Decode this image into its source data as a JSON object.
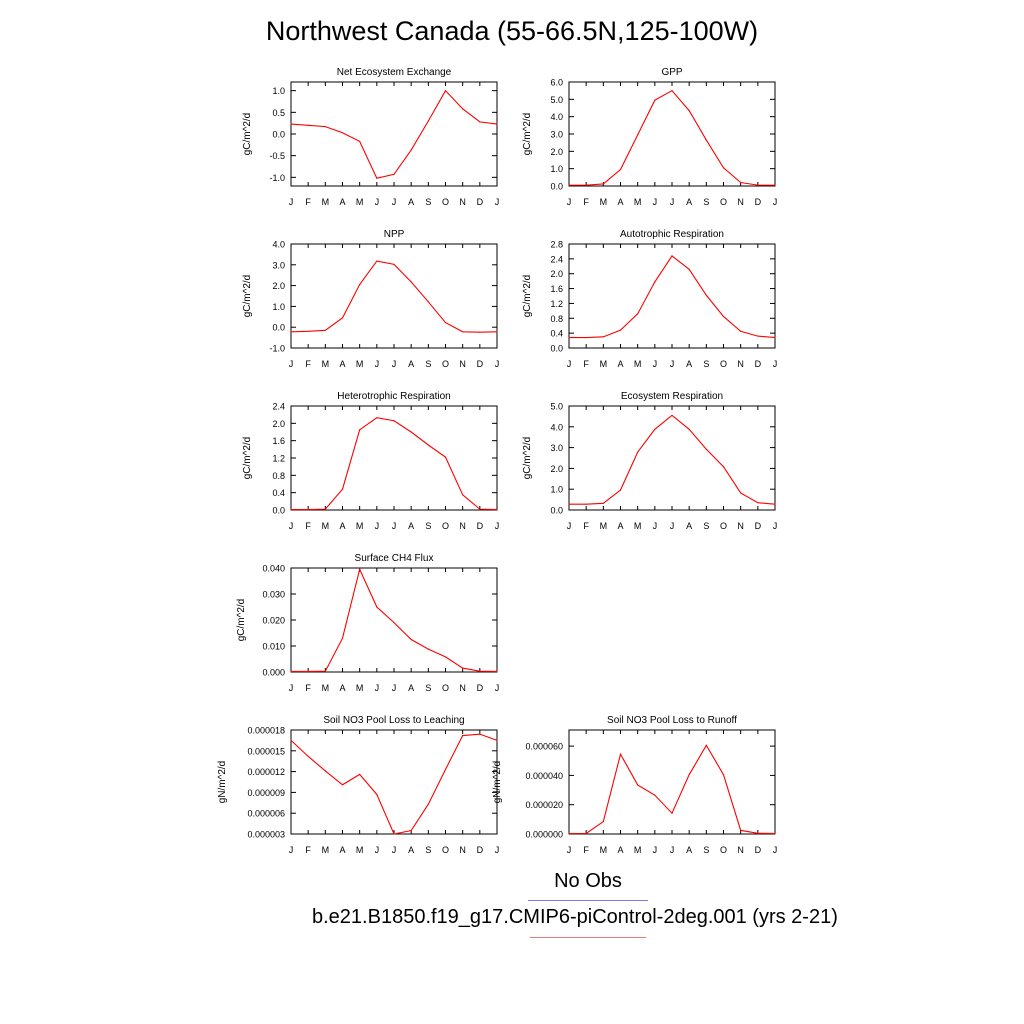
{
  "figure_title": "Northwest Canada (55-66.5N,125-100W)",
  "legend": {
    "obs_label": "No Obs",
    "case_label": "b.e21.B1850.f19_g17.CMIP6-piControl-2deg.001 (yrs 2-21)",
    "obs_color": "#7a7aee",
    "case_color": "#ee7a7a"
  },
  "chart_data": [
    {
      "type": "line",
      "title": "Net Ecosystem Exchange",
      "ylabel": "gC/m^2/d",
      "x": [
        "J",
        "F",
        "M",
        "A",
        "M",
        "J",
        "J",
        "A",
        "S",
        "O",
        "N",
        "D",
        "J"
      ],
      "series": [
        {
          "values": [
            0.23,
            0.2,
            0.17,
            0.03,
            -0.17,
            -1.02,
            -0.93,
            -0.37,
            0.3,
            1.0,
            0.58,
            0.28,
            0.23
          ],
          "color": "#ff0000"
        }
      ],
      "ylim": [
        -1.2,
        1.2
      ],
      "yticks": [
        -1.0,
        -0.5,
        0.0,
        0.5,
        1.0
      ],
      "ytick_labels": [
        "-1.0",
        "-0.5",
        "0.0",
        "0.5",
        "1.0"
      ]
    },
    {
      "type": "line",
      "title": "GPP",
      "ylabel": "gC/m^2/d",
      "x": [
        "J",
        "F",
        "M",
        "A",
        "M",
        "J",
        "J",
        "A",
        "S",
        "O",
        "N",
        "D",
        "J"
      ],
      "series": [
        {
          "values": [
            0.05,
            0.05,
            0.12,
            0.95,
            2.95,
            4.95,
            5.5,
            4.35,
            2.65,
            1.05,
            0.2,
            0.05,
            0.05
          ],
          "color": "#ff0000"
        }
      ],
      "ylim": [
        0.0,
        6.0
      ],
      "yticks": [
        0.0,
        1.0,
        2.0,
        3.0,
        4.0,
        5.0,
        6.0
      ],
      "ytick_labels": [
        "0.0",
        "1.0",
        "2.0",
        "3.0",
        "4.0",
        "5.0",
        "6.0"
      ]
    },
    {
      "type": "line",
      "title": "NPP",
      "ylabel": "gC/m^2/d",
      "x": [
        "J",
        "F",
        "M",
        "A",
        "M",
        "J",
        "J",
        "A",
        "S",
        "O",
        "N",
        "D",
        "J"
      ],
      "series": [
        {
          "values": [
            -0.22,
            -0.2,
            -0.15,
            0.45,
            2.05,
            3.18,
            3.02,
            2.18,
            1.22,
            0.22,
            -0.22,
            -0.24,
            -0.22
          ],
          "color": "#ff0000"
        }
      ],
      "ylim": [
        -1.0,
        4.0
      ],
      "yticks": [
        -1.0,
        0.0,
        1.0,
        2.0,
        3.0,
        4.0
      ],
      "ytick_labels": [
        "-1.0",
        "0.0",
        "1.0",
        "2.0",
        "3.0",
        "4.0"
      ]
    },
    {
      "type": "line",
      "title": "Autotrophic Respiration",
      "ylabel": "gC/m^2/d",
      "x": [
        "J",
        "F",
        "M",
        "A",
        "M",
        "J",
        "J",
        "A",
        "S",
        "O",
        "N",
        "D",
        "J"
      ],
      "series": [
        {
          "values": [
            0.28,
            0.28,
            0.3,
            0.48,
            0.92,
            1.78,
            2.48,
            2.12,
            1.42,
            0.85,
            0.45,
            0.32,
            0.28
          ],
          "color": "#ff0000"
        }
      ],
      "ylim": [
        0.0,
        2.8
      ],
      "yticks": [
        0.0,
        0.4,
        0.8,
        1.2,
        1.6,
        2.0,
        2.4,
        2.8
      ],
      "ytick_labels": [
        "0.0",
        "0.4",
        "0.8",
        "1.2",
        "1.6",
        "2.0",
        "2.4",
        "2.8"
      ]
    },
    {
      "type": "line",
      "title": "Heterotrophic Respiration",
      "ylabel": "gC/m^2/d",
      "x": [
        "J",
        "F",
        "M",
        "A",
        "M",
        "J",
        "J",
        "A",
        "S",
        "O",
        "N",
        "D",
        "J"
      ],
      "series": [
        {
          "values": [
            0.01,
            0.01,
            0.02,
            0.48,
            1.85,
            2.13,
            2.06,
            1.8,
            1.5,
            1.22,
            0.35,
            0.02,
            0.01
          ],
          "color": "#ff0000"
        }
      ],
      "ylim": [
        0.0,
        2.4
      ],
      "yticks": [
        0.0,
        0.4,
        0.8,
        1.2,
        1.6,
        2.0,
        2.4
      ],
      "ytick_labels": [
        "0.0",
        "0.4",
        "0.8",
        "1.2",
        "1.6",
        "2.0",
        "2.4"
      ]
    },
    {
      "type": "line",
      "title": "Ecosystem Respiration",
      "ylabel": "gC/m^2/d",
      "x": [
        "J",
        "F",
        "M",
        "A",
        "M",
        "J",
        "J",
        "A",
        "S",
        "O",
        "N",
        "D",
        "J"
      ],
      "series": [
        {
          "values": [
            0.28,
            0.28,
            0.32,
            0.96,
            2.78,
            3.88,
            4.55,
            3.88,
            2.92,
            2.08,
            0.82,
            0.35,
            0.28
          ],
          "color": "#ff0000"
        }
      ],
      "ylim": [
        0.0,
        5.0
      ],
      "yticks": [
        0.0,
        1.0,
        2.0,
        3.0,
        4.0,
        5.0
      ],
      "ytick_labels": [
        "0.0",
        "1.0",
        "2.0",
        "3.0",
        "4.0",
        "5.0"
      ]
    },
    {
      "type": "line",
      "title": "Surface CH4 Flux",
      "ylabel": "gC/m^2/d",
      "x": [
        "J",
        "F",
        "M",
        "A",
        "M",
        "J",
        "J",
        "A",
        "S",
        "O",
        "N",
        "D",
        "J"
      ],
      "series": [
        {
          "values": [
            0.0002,
            0.0002,
            0.0003,
            0.013,
            0.0395,
            0.025,
            0.019,
            0.0125,
            0.0088,
            0.0058,
            0.0015,
            0.0003,
            0.0002
          ],
          "color": "#ff0000"
        }
      ],
      "ylim": [
        0.0,
        0.04
      ],
      "yticks": [
        0.0,
        0.01,
        0.02,
        0.03,
        0.04
      ],
      "ytick_labels": [
        "0.000",
        "0.010",
        "0.020",
        "0.030",
        "0.040"
      ]
    },
    {
      "type": "line",
      "title": "Soil NO3 Pool Loss to Leaching",
      "ylabel": "gN/m^2/d",
      "x": [
        "J",
        "F",
        "M",
        "A",
        "M",
        "J",
        "J",
        "A",
        "S",
        "O",
        "N",
        "D",
        "J"
      ],
      "series": [
        {
          "values": [
            1.65e-05,
            1.42e-05,
            1.21e-05,
            1.01e-05,
            1.16e-05,
            8.7e-06,
            3e-06,
            3.5e-06,
            7.3e-06,
            1.23e-05,
            1.72e-05,
            1.74e-05,
            1.65e-05
          ],
          "color": "#ff0000"
        }
      ],
      "ylim": [
        3e-06,
        1.8e-05
      ],
      "yticks": [
        3e-06,
        6e-06,
        9e-06,
        1.2e-05,
        1.5e-05,
        1.8e-05
      ],
      "ytick_labels": [
        "0.000003",
        "0.000006",
        "0.000009",
        "0.000012",
        "0.000015",
        "0.000018"
      ]
    },
    {
      "type": "line",
      "title": "Soil NO3 Pool Loss to Runoff",
      "ylabel": "gN/m^2/d",
      "x": [
        "J",
        "F",
        "M",
        "A",
        "M",
        "J",
        "J",
        "A",
        "S",
        "O",
        "N",
        "D",
        "J"
      ],
      "series": [
        {
          "values": [
            3e-07,
            4e-07,
            8.5e-06,
            5.45e-05,
            3.35e-05,
            2.65e-05,
            1.42e-05,
            4.05e-05,
            6.05e-05,
            4.05e-05,
            2.5e-06,
            5e-07,
            3e-07
          ],
          "color": "#ff0000"
        }
      ],
      "ylim": [
        0.0,
        7.1e-05
      ],
      "yticks": [
        0.0,
        2e-05,
        4e-05,
        6e-05
      ],
      "ytick_labels": [
        "0.000000",
        "0.000020",
        "0.000040",
        "0.000060"
      ]
    }
  ]
}
